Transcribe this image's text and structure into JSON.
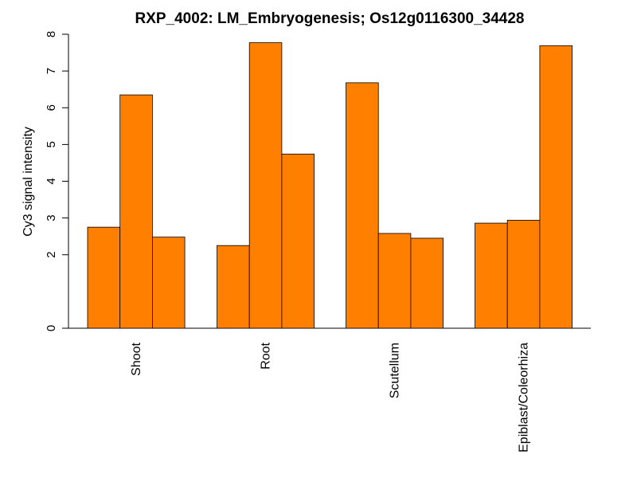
{
  "chart_data": {
    "type": "bar",
    "title": "RXP_4002: LM_Embryogenesis; Os12g0116300_34428",
    "ylabel": "Cy3 signal intensity",
    "xlabel": "",
    "ylim": [
      0,
      8
    ],
    "y_ticks": [
      0,
      2,
      3,
      4,
      5,
      6,
      7,
      8
    ],
    "y_tick_labels": [
      "0",
      "2",
      "3",
      "4",
      "5",
      "6",
      "7",
      "8"
    ],
    "categories": [
      "Shoot",
      "Root",
      "Scutellum",
      "Epiblast/Coleorhiza"
    ],
    "groups": [
      [
        2.75,
        6.35,
        2.48
      ],
      [
        2.25,
        7.77,
        4.74
      ],
      [
        6.68,
        2.58,
        2.45
      ],
      [
        2.86,
        2.94,
        7.69
      ]
    ],
    "bar_color": "#ff7f00",
    "grid": false,
    "legend": "none"
  }
}
